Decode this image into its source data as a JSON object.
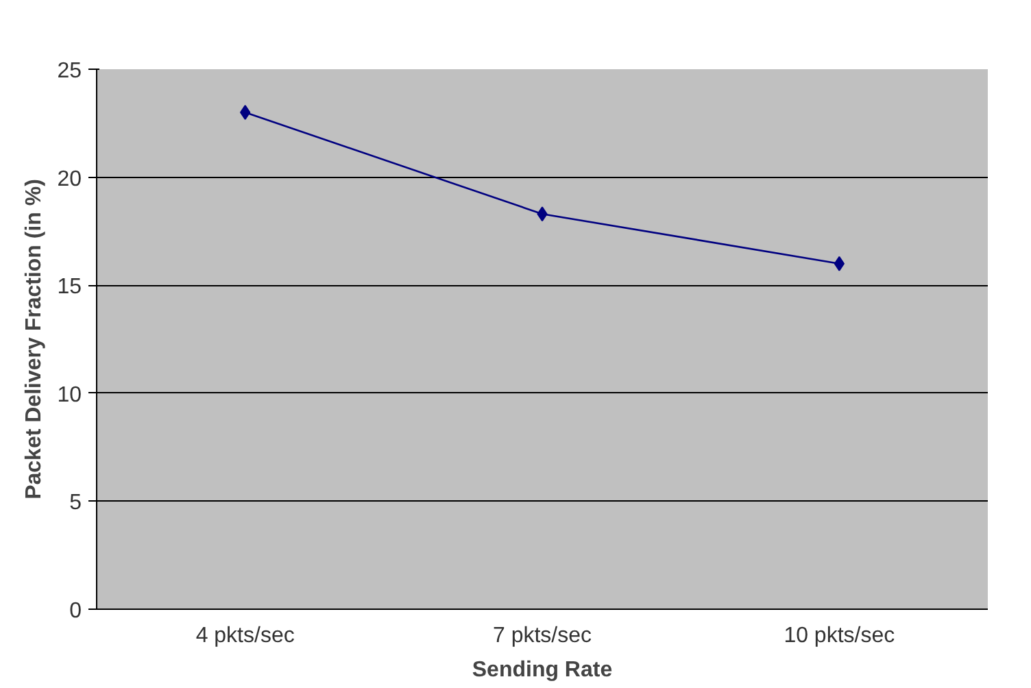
{
  "chart_data": {
    "type": "line",
    "xlabel": "Sending Rate",
    "ylabel": "Packet Delivery Fraction (in %)",
    "categories": [
      "4 pkts/sec",
      "7 pkts/sec",
      "10 pkts/sec"
    ],
    "series": [
      {
        "color": "#000080",
        "values": [
          23.0,
          18.3,
          16.0
        ]
      }
    ],
    "ylim": [
      0,
      25
    ],
    "yticks": [
      0,
      5,
      10,
      15,
      20,
      25
    ],
    "grid": "y",
    "marker": "diamond",
    "line_style": "solid"
  }
}
